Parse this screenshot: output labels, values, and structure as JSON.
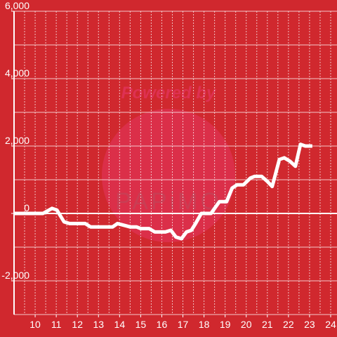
{
  "chart_data": {
    "type": "line",
    "watermark": [
      "Powered by",
      "PAPiMO"
    ],
    "x": [
      9.0,
      10.37,
      10.8,
      11.03,
      11.37,
      11.63,
      12.37,
      12.63,
      13.67,
      13.9,
      14.5,
      14.8,
      15.0,
      15.4,
      15.67,
      16.17,
      16.43,
      16.67,
      16.93,
      17.17,
      17.4,
      17.6,
      17.87,
      18.33,
      18.73,
      19.07,
      19.33,
      19.57,
      19.87,
      20.2,
      20.4,
      20.73,
      21.0,
      21.23,
      21.57,
      21.8,
      22.07,
      22.33,
      22.57,
      22.8,
      23.13
    ],
    "series": [
      {
        "color": "#ffffff",
        "values": [
          0,
          0,
          150,
          100,
          -250,
          -300,
          -300,
          -400,
          -400,
          -300,
          -400,
          -400,
          -450,
          -450,
          -550,
          -550,
          -500,
          -700,
          -750,
          -550,
          -500,
          -300,
          0,
          0,
          350,
          350,
          750,
          850,
          850,
          1050,
          1100,
          1100,
          950,
          800,
          1600,
          1650,
          1550,
          1400,
          2050,
          2000,
          2000
        ]
      }
    ],
    "xlim": [
      9,
      24.3
    ],
    "xticks": [
      10,
      11,
      12,
      13,
      14,
      15,
      16,
      17,
      18,
      19,
      20,
      21,
      22,
      23,
      24
    ],
    "ylim": [
      -3000,
      6000
    ],
    "yticks": [
      {
        "value": -2000,
        "label": "-2,000"
      },
      0,
      {
        "value": 2000,
        "label": "2,000"
      },
      {
        "value": 4000,
        "label": "4,000"
      },
      {
        "value": 6000,
        "label": "6,000"
      }
    ],
    "ygrid": [
      -3000,
      -2000,
      -1000,
      0,
      1000,
      2000,
      3000,
      4000,
      5000,
      6000
    ],
    "xgrid_step": 0.5,
    "background": "#d0282e"
  }
}
